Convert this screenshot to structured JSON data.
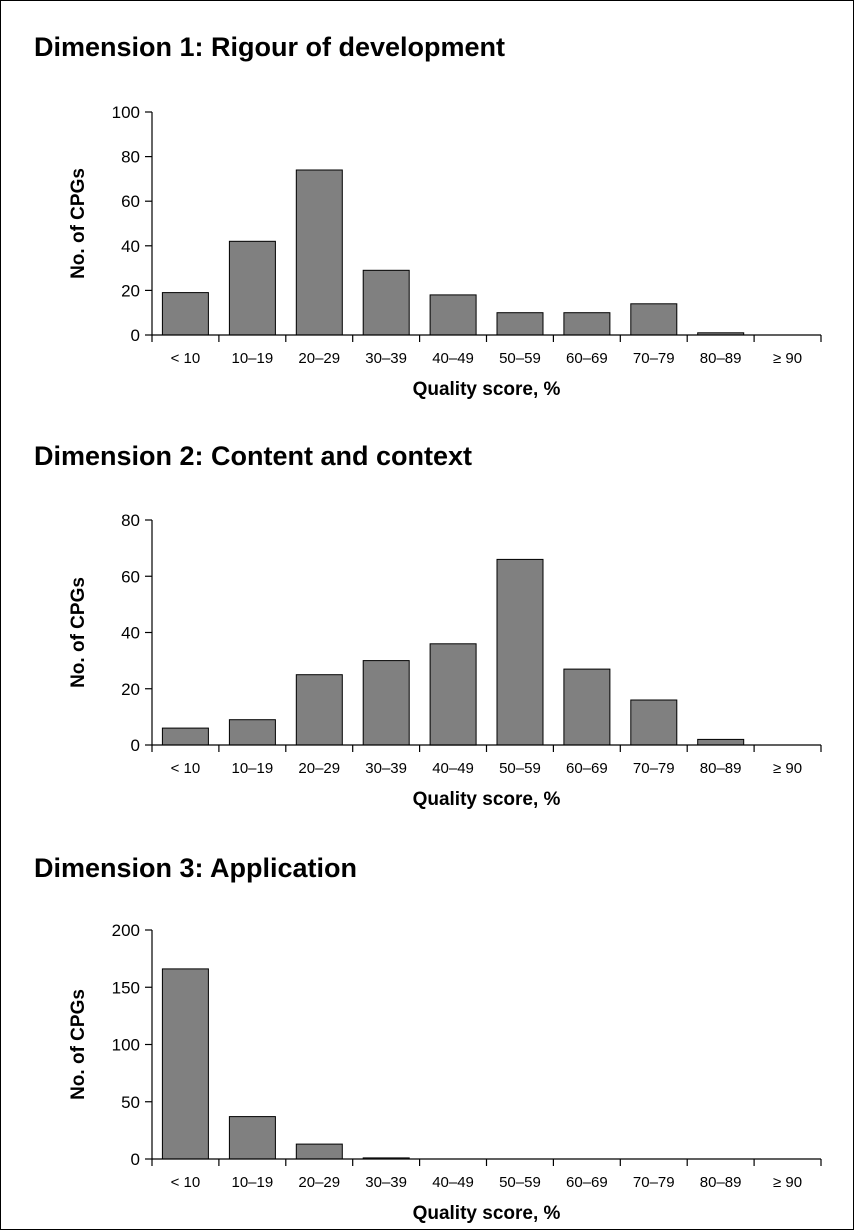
{
  "chart_data": [
    {
      "type": "bar",
      "title": "Dimension 1: Rigour of development",
      "xlabel": "Quality score, %",
      "ylabel": "No. of CPGs",
      "categories": [
        "< 10",
        "10–19",
        "20–29",
        "30–39",
        "40–49",
        "50–59",
        "60–69",
        "70–79",
        "80–89",
        "≥ 90"
      ],
      "values": [
        19,
        42,
        74,
        29,
        18,
        10,
        10,
        14,
        1,
        0
      ],
      "ylim": [
        0,
        100
      ],
      "yticks": [
        0,
        20,
        40,
        60,
        80,
        100
      ],
      "bar_color": "#808080",
      "grid": false
    },
    {
      "type": "bar",
      "title": "Dimension 2: Content and context",
      "xlabel": "Quality score, %",
      "ylabel": "No. of CPGs",
      "categories": [
        "< 10",
        "10–19",
        "20–29",
        "30–39",
        "40–49",
        "50–59",
        "60–69",
        "70–79",
        "80–89",
        "≥ 90"
      ],
      "values": [
        6,
        9,
        25,
        30,
        36,
        66,
        27,
        16,
        2,
        0
      ],
      "ylim": [
        0,
        80
      ],
      "yticks": [
        0,
        20,
        40,
        60,
        80
      ],
      "bar_color": "#808080",
      "grid": false
    },
    {
      "type": "bar",
      "title": "Dimension 3: Application",
      "xlabel": "Quality score, %",
      "ylabel": "No. of CPGs",
      "categories": [
        "< 10",
        "10–19",
        "20–29",
        "30–39",
        "40–49",
        "50–59",
        "60–69",
        "70–79",
        "80–89",
        "≥ 90"
      ],
      "values": [
        166,
        37,
        13,
        1,
        0,
        0,
        0,
        0,
        0,
        0
      ],
      "ylim": [
        0,
        200
      ],
      "yticks": [
        0,
        50,
        100,
        150,
        200
      ],
      "bar_color": "#808080",
      "grid": false
    }
  ]
}
